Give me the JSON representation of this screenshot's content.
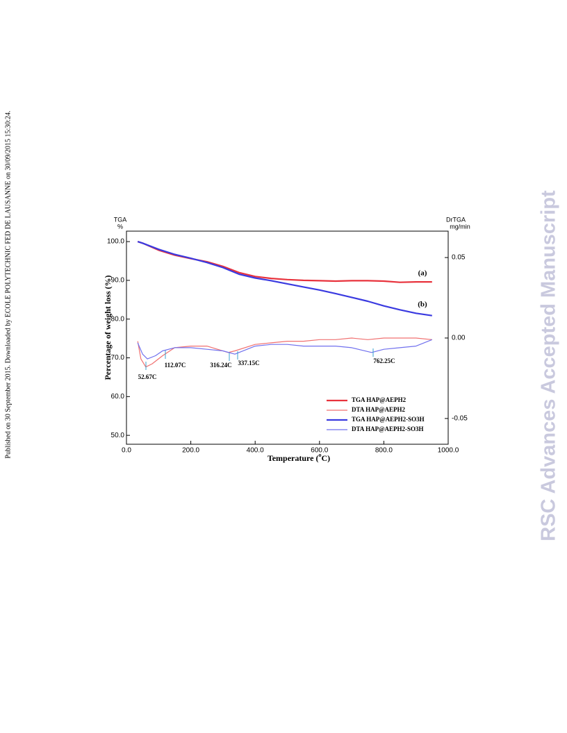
{
  "side_note": "Published on 30 September 2015. Downloaded by ECOLE POLYTECHNIC FED DE LAUSANNE on 30/09/2015 15:30:24.",
  "watermark": "RSC Advances Accepted Manuscript",
  "chart_data": {
    "type": "line",
    "y_axis_title": [
      "TGA",
      "%"
    ],
    "y2_axis_title": [
      "DrTGA",
      "mg/min"
    ],
    "y_label": "Percentage of weight loss (%)",
    "x_label": [
      "Temperature (",
      "o",
      "C)"
    ],
    "xlim": [
      0,
      1000
    ],
    "xticks": [
      {
        "value": 0,
        "label": "0.0"
      },
      {
        "value": 200,
        "label": "200.0"
      },
      {
        "value": 400,
        "label": "400.0"
      },
      {
        "value": 600,
        "label": "600.0"
      },
      {
        "value": 800,
        "label": "800.0"
      },
      {
        "value": 1000,
        "label": "1000.0"
      }
    ],
    "ylim": [
      47.7,
      102.7
    ],
    "yticks": [
      {
        "value": 50,
        "label": "50.0"
      },
      {
        "value": 60,
        "label": "60.0"
      },
      {
        "value": 70,
        "label": "70.0"
      },
      {
        "value": 80,
        "label": "80.0"
      },
      {
        "value": 90,
        "label": "90.0"
      },
      {
        "value": 100,
        "label": "100.0"
      }
    ],
    "y2lim": [
      -0.066,
      0.0664
    ],
    "y2ticks": [
      -0.05,
      {
        "value": 0,
        "label": "0.00"
      },
      0.05
    ],
    "grid": false,
    "legend": "lower right",
    "series": [
      {
        "name": "TGA HAP@AEPH2",
        "color": "#e8323c",
        "width": 2.2,
        "x": [
          35,
          50,
          100,
          150,
          200,
          250,
          300,
          350,
          400,
          450,
          500,
          550,
          600,
          650,
          700,
          750,
          800,
          850,
          900,
          950
        ],
        "values": [
          100.0,
          99.6,
          97.8,
          96.5,
          95.6,
          94.8,
          93.6,
          92.0,
          91.0,
          90.5,
          90.2,
          90.0,
          89.9,
          89.8,
          89.9,
          89.9,
          89.8,
          89.5,
          89.6,
          89.6
        ]
      },
      {
        "name": "DTA HAP@AEPH2",
        "color": "#f07070",
        "width": 1.2,
        "axis": "y2",
        "x": [
          35,
          45,
          60,
          80,
          112,
          150,
          200,
          250,
          316,
          337,
          400,
          450,
          500,
          550,
          600,
          650,
          700,
          750,
          800,
          850,
          900,
          950
        ],
        "values": [
          -0.002,
          -0.013,
          -0.018,
          -0.016,
          -0.011,
          -0.006,
          -0.005,
          -0.005,
          -0.009,
          -0.008,
          -0.004,
          -0.003,
          -0.002,
          -0.002,
          -0.001,
          -0.001,
          0.0,
          -0.001,
          0.0,
          0.0,
          0.0,
          -0.001
        ]
      },
      {
        "name": "TGA HAP@AEPH2-SO3H",
        "color": "#3a3ae0",
        "width": 2.2,
        "x": [
          35,
          50,
          100,
          150,
          200,
          250,
          300,
          350,
          400,
          450,
          500,
          550,
          600,
          650,
          700,
          750,
          800,
          850,
          900,
          950
        ],
        "values": [
          100.0,
          99.6,
          98.0,
          96.7,
          95.7,
          94.6,
          93.3,
          91.6,
          90.6,
          89.9,
          89.1,
          88.3,
          87.5,
          86.6,
          85.6,
          84.6,
          83.4,
          82.4,
          81.5,
          80.9
        ]
      },
      {
        "name": "DTA HAP@AEPH2-SO3H",
        "color": "#7070ee",
        "width": 1.2,
        "axis": "y2",
        "x": [
          35,
          50,
          65,
          90,
          112,
          150,
          200,
          250,
          300,
          337,
          400,
          450,
          500,
          550,
          600,
          650,
          700,
          762,
          800,
          850,
          900,
          950
        ],
        "values": [
          -0.003,
          -0.01,
          -0.013,
          -0.011,
          -0.008,
          -0.006,
          -0.006,
          -0.007,
          -0.008,
          -0.01,
          -0.005,
          -0.004,
          -0.004,
          -0.005,
          -0.005,
          -0.005,
          -0.006,
          -0.009,
          -0.007,
          -0.006,
          -0.005,
          -0.001
        ]
      }
    ],
    "annotations": [
      "(a)",
      "(b)",
      "52.67C",
      "112.07C",
      "316.24C",
      "337.15C",
      "762.25C"
    ]
  }
}
